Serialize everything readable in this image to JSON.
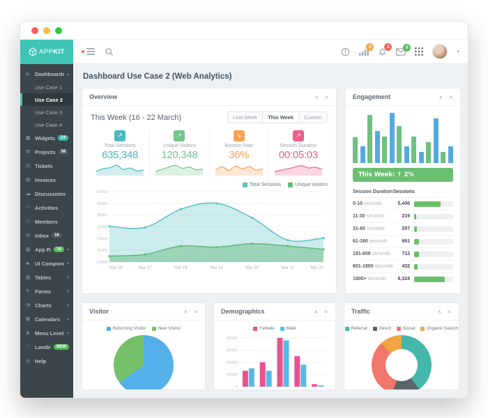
{
  "brand": {
    "app": "APP",
    "kit": "KIT"
  },
  "topbar": {
    "badge_stats": "8",
    "badge_alerts": "3",
    "badge_messages": "5"
  },
  "panel_icons": {
    "collapse": "∧",
    "close": "×"
  },
  "page": {
    "title": "Dashboard Use Case 2 (Web Analytics)"
  },
  "sidebar": {
    "items": [
      {
        "label": "Dashboards",
        "glyph": "⌂",
        "caret": "▴"
      },
      {
        "label": "Use Case 1",
        "child": true
      },
      {
        "label": "Use Case 2",
        "child": true,
        "active": true
      },
      {
        "label": "Use Case 3",
        "child": true
      },
      {
        "label": "Use Case 4",
        "child": true
      },
      {
        "label": "Widgets",
        "glyph": "▦",
        "badge": "14",
        "badge_color": "#3bbdb0"
      },
      {
        "label": "Projects",
        "glyph": "⚒",
        "badge": "56",
        "badge_color": "#4e585e"
      },
      {
        "label": "Tickets",
        "glyph": "☑"
      },
      {
        "label": "Invoices",
        "glyph": "▤"
      },
      {
        "label": "Discussions",
        "glyph": "☁"
      },
      {
        "label": "Activities",
        "glyph": "⚐"
      },
      {
        "label": "Members",
        "glyph": "⚇"
      },
      {
        "label": "Inbox",
        "glyph": "✉",
        "badge": "18",
        "badge_color": "#4e585e"
      },
      {
        "label": "App Pages",
        "glyph": "▧",
        "badge": "14",
        "badge_color": "#56bd5b",
        "caret": "▾"
      },
      {
        "label": "UI Components",
        "glyph": "◈",
        "caret": "▾"
      },
      {
        "label": "Tables",
        "glyph": "▥",
        "caret": "▾"
      },
      {
        "label": "Forms",
        "glyph": "✎",
        "caret": "▾"
      },
      {
        "label": "Charts",
        "glyph": "◔",
        "caret": "▾"
      },
      {
        "label": "Calendars",
        "glyph": "⊞",
        "caret": "▾"
      },
      {
        "label": "Menu Levels",
        "glyph": "⋔",
        "caret": "▾"
      },
      {
        "label": "Landing Page",
        "glyph": "♡",
        "badge": "NEW",
        "badge_color": "#56bd5b"
      },
      {
        "label": "Help",
        "glyph": "◎"
      }
    ]
  },
  "overview": {
    "title": "Overview",
    "period_title": "This Week (16 - 22 March)",
    "range_buttons": [
      "Last Week",
      "This Week",
      "Custom"
    ],
    "active_range": 1,
    "stats": [
      {
        "label": "Total Sessions",
        "value": "635,348",
        "color": "#4ab9bb",
        "trend": "↗",
        "spark": [
          30,
          52,
          60,
          82,
          46,
          58,
          34,
          42
        ],
        "fill": "rgba(74,185,187,0.25)"
      },
      {
        "label": "Unique Visitors",
        "value": "120,348",
        "color": "#72c688",
        "trend": "↗",
        "spark": [
          28,
          48,
          66,
          80,
          55,
          66,
          44,
          50
        ],
        "fill": "rgba(114,198,136,0.25)"
      },
      {
        "label": "Bounce Rate",
        "value": "36%",
        "color": "#f8a055",
        "trend": "↘",
        "spark": [
          40,
          68,
          38,
          75,
          50,
          70,
          40,
          52
        ],
        "fill": "rgba(248,160,85,0.25)"
      },
      {
        "label": "Session Duration",
        "value": "00:05:03",
        "color": "#ee5f8d",
        "trend": "↗",
        "spark": [
          28,
          40,
          52,
          66,
          78,
          58,
          64,
          46
        ],
        "fill": "rgba(238,95,141,0.25)"
      }
    ],
    "chart_data": {
      "type": "area",
      "x": [
        "Mar 16",
        "Mar 17",
        "Mar 18",
        "Mar 19",
        "Mar 20",
        "Mar 21",
        "Mar 22"
      ],
      "series": [
        {
          "name": "Total Sessions",
          "color": "#58c0c6",
          "fill": "rgba(88,192,198,0.30)",
          "values": [
            25200,
            24700,
            32500,
            35000,
            28800,
            19300,
            20200
          ]
        },
        {
          "name": "Unique Visitors",
          "color": "#5fba77",
          "fill": "rgba(95,186,119,0.45)",
          "values": [
            12500,
            13200,
            16800,
            16300,
            17800,
            16800,
            15400
          ]
        }
      ],
      "ylim": [
        10000,
        40000
      ],
      "ytick": 5000
    }
  },
  "engagement": {
    "title": "Engagement",
    "chart_data": {
      "type": "bar",
      "values_pct": [
        50,
        32,
        93,
        62,
        52,
        97,
        72,
        32,
        52,
        22,
        40,
        86,
        22,
        32
      ],
      "colors": [
        "#6fbf7e",
        "#55a9e0"
      ]
    },
    "banner": "This Week: ↑ 2%",
    "table": {
      "col1": "Session Duration",
      "col2": "Sessions",
      "rows": [
        {
          "label": "0-10",
          "unit": "seconds",
          "value": "5,406",
          "pct": 67
        },
        {
          "label": "11-30",
          "unit": "seconds",
          "value": "219",
          "pct": 5
        },
        {
          "label": "31-60",
          "unit": "seconds",
          "value": "297",
          "pct": 7
        },
        {
          "label": "61-180",
          "unit": "seconds",
          "value": "661",
          "pct": 12
        },
        {
          "label": "181-600",
          "unit": "seconds",
          "value": "713",
          "pct": 13
        },
        {
          "label": "601-1800",
          "unit": "seconds",
          "value": "432",
          "pct": 9
        },
        {
          "label": "1800+",
          "unit": "seconds",
          "value": "6,324",
          "pct": 79
        }
      ]
    }
  },
  "visitor": {
    "title": "Visitor",
    "chart_data": {
      "type": "pie",
      "labels": [
        "Returning Visitor",
        "New Visitor"
      ],
      "values": [
        65,
        35
      ],
      "colors": [
        "#54b0e8",
        "#77c06a"
      ]
    }
  },
  "demographics": {
    "title": "Demographics",
    "chart_data": {
      "type": "bar",
      "categories": [
        "18-24",
        "25-34",
        "35-44",
        "45-54",
        "65+"
      ],
      "series": [
        {
          "name": "Female",
          "color": "#e8538f",
          "values": [
            130000,
            200000,
            400000,
            250000,
            20000
          ]
        },
        {
          "name": "Male",
          "color": "#59b8e8",
          "values": [
            150000,
            130000,
            380000,
            180000,
            10000
          ]
        }
      ],
      "ylim": [
        0,
        400000
      ],
      "yticks": [
        0,
        100000,
        200000,
        300000,
        400000
      ]
    }
  },
  "traffic": {
    "title": "Traffic",
    "chart_data": {
      "type": "donut",
      "labels": [
        "Referral",
        "Direct",
        "Social",
        "Organic Search"
      ],
      "values": [
        40,
        15,
        33,
        12
      ],
      "colors": [
        "#45b8ab",
        "#5c646b",
        "#f0776c",
        "#f2a643"
      ]
    }
  }
}
